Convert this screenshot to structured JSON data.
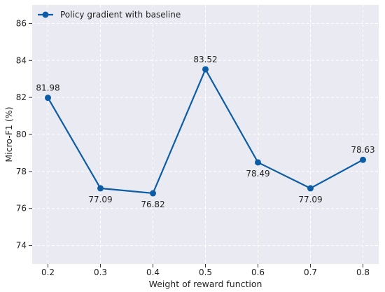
{
  "chart_data": {
    "type": "line",
    "title": "",
    "xlabel": "Weight of reward function",
    "ylabel": "Micro-F1 (%)",
    "x": [
      0.2,
      0.3,
      0.4,
      0.5,
      0.6,
      0.7,
      0.8
    ],
    "x_tick_labels": [
      "0.2",
      "0.3",
      "0.4",
      "0.5",
      "0.6",
      "0.7",
      "0.8"
    ],
    "y_ticks": [
      74,
      76,
      78,
      80,
      82,
      84,
      86
    ],
    "y_tick_labels": [
      "74",
      "76",
      "78",
      "80",
      "82",
      "84",
      "86"
    ],
    "xlim": [
      0.17,
      0.83
    ],
    "ylim": [
      73.0,
      87.0
    ],
    "grid": true,
    "legend_position": "top-left",
    "series": [
      {
        "name": "Policy gradient with baseline",
        "color": "#0c5da5",
        "values": [
          81.98,
          77.09,
          76.82,
          83.52,
          78.49,
          77.09,
          78.63
        ],
        "value_labels": [
          "81.98",
          "77.09",
          "76.82",
          "83.52",
          "78.49",
          "77.09",
          "78.63"
        ],
        "label_positions": [
          "above",
          "below",
          "below",
          "above",
          "below",
          "below",
          "above"
        ]
      }
    ],
    "background_color": "#eaeaf2",
    "grid_color": "#ffffff"
  }
}
